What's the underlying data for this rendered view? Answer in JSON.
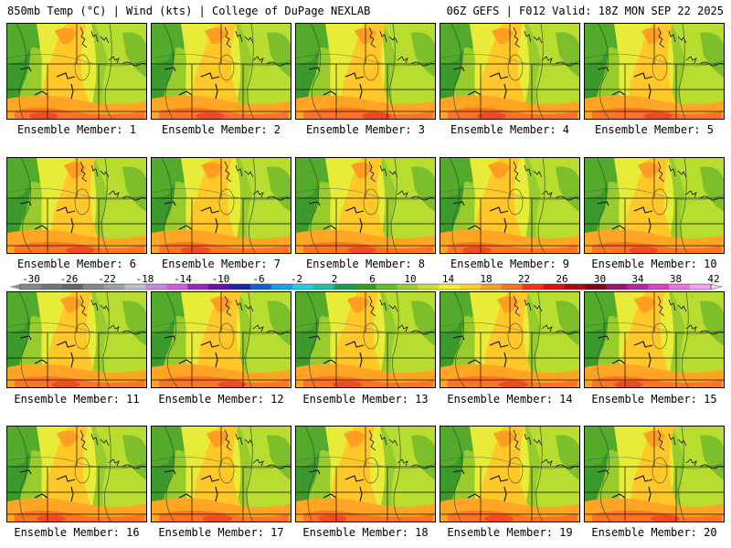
{
  "header": {
    "left": "850mb Temp (°C) | Wind (kts) | College of DuPage NEXLAB",
    "right": "06Z GEFS | F012 Valid: 18Z MON SEP 22 2025"
  },
  "panels": [
    {
      "label": "Ensemble Member: 1"
    },
    {
      "label": "Ensemble Member: 2"
    },
    {
      "label": "Ensemble Member: 3"
    },
    {
      "label": "Ensemble Member: 4"
    },
    {
      "label": "Ensemble Member: 5"
    },
    {
      "label": "Ensemble Member: 6"
    },
    {
      "label": "Ensemble Member: 7"
    },
    {
      "label": "Ensemble Member: 8"
    },
    {
      "label": "Ensemble Member: 9"
    },
    {
      "label": "Ensemble Member: 10"
    },
    {
      "label": "Ensemble Member: 11"
    },
    {
      "label": "Ensemble Member: 12"
    },
    {
      "label": "Ensemble Member: 13"
    },
    {
      "label": "Ensemble Member: 14"
    },
    {
      "label": "Ensemble Member: 15"
    },
    {
      "label": "Ensemble Member: 16"
    },
    {
      "label": "Ensemble Member: 17"
    },
    {
      "label": "Ensemble Member: 18"
    },
    {
      "label": "Ensemble Member: 19"
    },
    {
      "label": "Ensemble Member: 20"
    }
  ],
  "colorbar": {
    "tick_labels": [
      "-30",
      "-26",
      "-22",
      "-18",
      "-14",
      "-10",
      "-6",
      "-2",
      "2",
      "6",
      "10",
      "14",
      "18",
      "22",
      "26",
      "30",
      "34",
      "38",
      "42"
    ],
    "colors": [
      "#7d8c84",
      "#6b7a75",
      "#5f6a66",
      "#858888",
      "#9aa2a6",
      "#b9c3c8",
      "#cc88dd",
      "#dd55ee",
      "#a020c0",
      "#6a10b0",
      "#2020b0",
      "#1060e0",
      "#10a0f0",
      "#20d0e8",
      "#20c0a0",
      "#10a050",
      "#30a020",
      "#60c020",
      "#98d030",
      "#c8e030",
      "#f0f030",
      "#ffd020",
      "#ffa020",
      "#ff7020",
      "#ff3010",
      "#e01010",
      "#b00a10",
      "#800810",
      "#a01070",
      "#c020a0",
      "#e040c0",
      "#f070e0",
      "#f8a0f0"
    ]
  }
}
